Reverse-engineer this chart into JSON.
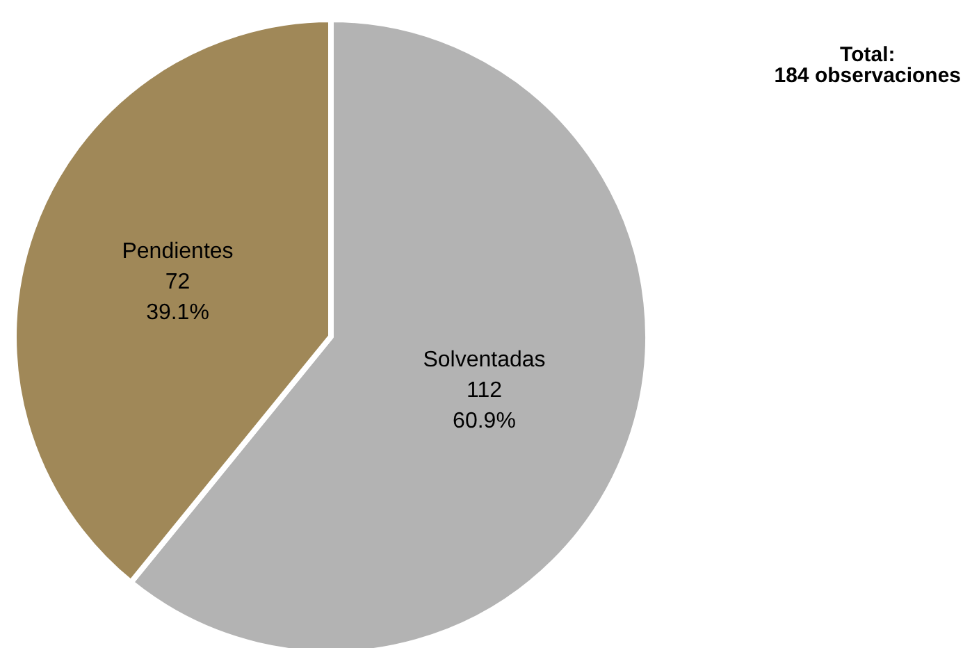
{
  "chart_data": {
    "type": "pie",
    "categories": [
      "Solventadas",
      "Pendientes"
    ],
    "values": [
      112,
      72
    ],
    "colors": [
      "#b3b3b3",
      "#a08858"
    ],
    "value_labels": [
      "112\n60.9%",
      "72\n39.1%"
    ],
    "annotations": [
      "Total:\n184 observaciones"
    ],
    "legend": false
  }
}
